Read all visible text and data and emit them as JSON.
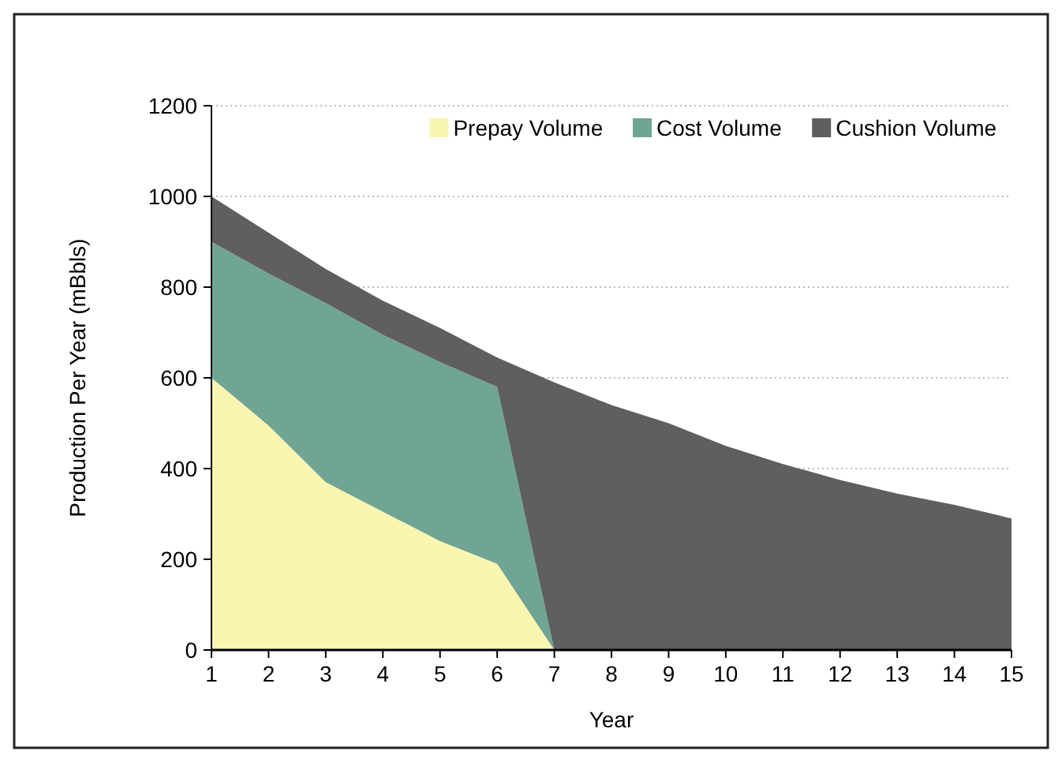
{
  "chart_data": {
    "type": "area",
    "stacked": true,
    "xlabel": "Year",
    "ylabel": "Production Per Year (mBbls)",
    "x": [
      1,
      2,
      3,
      4,
      5,
      6,
      7,
      8,
      9,
      10,
      11,
      12,
      13,
      14,
      15
    ],
    "series": [
      {
        "name": "Prepay Volume",
        "color": "#faf5b0",
        "values": [
          600,
          495,
          370,
          305,
          240,
          190,
          0,
          0,
          0,
          0,
          0,
          0,
          0,
          0,
          0
        ]
      },
      {
        "name": "Cost Volume",
        "color": "#70a593",
        "values": [
          300,
          335,
          395,
          390,
          395,
          390,
          0,
          0,
          0,
          0,
          0,
          0,
          0,
          0,
          0
        ]
      },
      {
        "name": "Cushion Volume",
        "color": "#5f5f5f",
        "values": [
          100,
          90,
          75,
          75,
          75,
          65,
          590,
          540,
          500,
          450,
          410,
          375,
          345,
          320,
          290
        ]
      }
    ],
    "xlim": [
      1,
      15
    ],
    "xticks": [
      1,
      2,
      3,
      4,
      5,
      6,
      7,
      8,
      9,
      10,
      11,
      12,
      13,
      14,
      15
    ],
    "ylim": [
      0,
      1200
    ],
    "yticks": [
      0,
      200,
      400,
      600,
      800,
      1000,
      1200
    ],
    "grid": "y",
    "legend": "top right"
  }
}
